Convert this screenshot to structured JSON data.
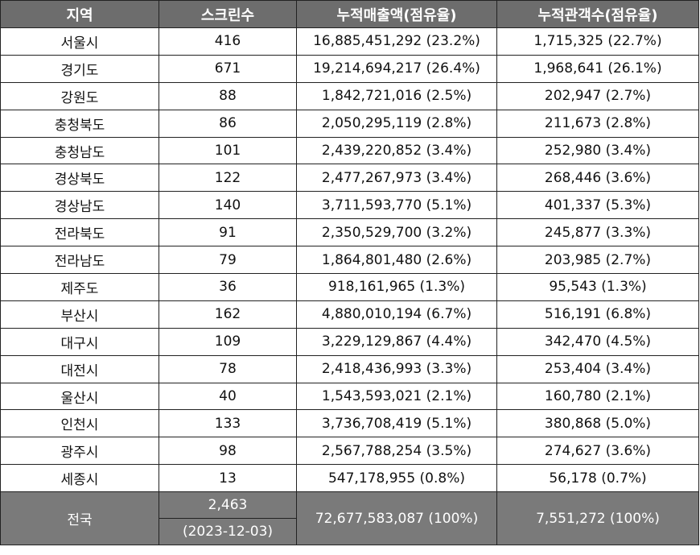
{
  "headers": [
    "지역",
    "스크린수",
    "누적매출액(점유율)",
    "누적관객수(점유율)"
  ],
  "rows": [
    {
      "region": "서울시",
      "screens": "416",
      "sales": "16,885,451,292 (23.2%)",
      "audience": "1,715,325 (22.7%)"
    },
    {
      "region": "경기도",
      "screens": "671",
      "sales": "19,214,694,217 (26.4%)",
      "audience": "1,968,641 (26.1%)"
    },
    {
      "region": "강원도",
      "screens": "88",
      "sales": "1,842,721,016 (2.5%)",
      "audience": "202,947 (2.7%)"
    },
    {
      "region": "충청북도",
      "screens": "86",
      "sales": "2,050,295,119 (2.8%)",
      "audience": "211,673 (2.8%)"
    },
    {
      "region": "충청남도",
      "screens": "101",
      "sales": "2,439,220,852 (3.4%)",
      "audience": "252,980 (3.4%)"
    },
    {
      "region": "경상북도",
      "screens": "122",
      "sales": "2,477,267,973 (3.4%)",
      "audience": "268,446 (3.6%)"
    },
    {
      "region": "경상남도",
      "screens": "140",
      "sales": "3,711,593,770 (5.1%)",
      "audience": "401,337 (5.3%)"
    },
    {
      "region": "전라북도",
      "screens": "91",
      "sales": "2,350,529,700 (3.2%)",
      "audience": "245,877 (3.3%)"
    },
    {
      "region": "전라남도",
      "screens": "79",
      "sales": "1,864,801,480 (2.6%)",
      "audience": "203,985 (2.7%)"
    },
    {
      "region": "제주도",
      "screens": "36",
      "sales": "918,161,965 (1.3%)",
      "audience": "95,543 (1.3%)"
    },
    {
      "region": "부산시",
      "screens": "162",
      "sales": "4,880,010,194 (6.7%)",
      "audience": "516,191 (6.8%)"
    },
    {
      "region": "대구시",
      "screens": "109",
      "sales": "3,229,129,867 (4.4%)",
      "audience": "342,470 (4.5%)"
    },
    {
      "region": "대전시",
      "screens": "78",
      "sales": "2,418,436,993 (3.3%)",
      "audience": "253,404 (3.4%)"
    },
    {
      "region": "울산시",
      "screens": "40",
      "sales": "1,543,593,021 (2.1%)",
      "audience": "160,780 (2.1%)"
    },
    {
      "region": "인천시",
      "screens": "133",
      "sales": "3,736,708,419 (5.1%)",
      "audience": "380,868 (5.0%)"
    },
    {
      "region": "광주시",
      "screens": "98",
      "sales": "2,567,788,254 (3.5%)",
      "audience": "274,627 (3.6%)"
    },
    {
      "region": "세종시",
      "screens": "13",
      "sales": "547,178,955 (0.8%)",
      "audience": "56,178 (0.7%)"
    }
  ],
  "total": {
    "region": "전국",
    "screens": "2,463",
    "date": "(2023-12-03)",
    "sales": "72,677,583,087 (100%)",
    "audience": "7,551,272 (100%)"
  },
  "colors": {
    "header_bg": "#6d6d6d",
    "footer_bg": "#7a7a7a",
    "border": "#222222"
  }
}
